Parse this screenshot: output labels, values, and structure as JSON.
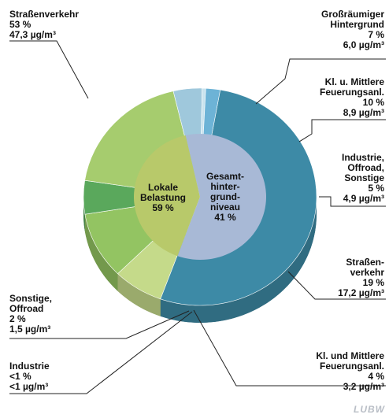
{
  "chart_data": {
    "type": "pie",
    "title": "",
    "outer_ring": [
      {
        "name": "Straßenverkehr",
        "percent_label": "53 %",
        "value_label": "47,3 µg/m³",
        "value": 53,
        "color": "#3d8aa6"
      },
      {
        "name": "Großräumiger Hintergrund",
        "percent_label": "7 %",
        "value_label": "6,0 µg/m³",
        "value": 7,
        "color": "#c5da8a"
      },
      {
        "name": "Kl. u. Mittlere Feuerungsanl.",
        "percent_label": "10 %",
        "value_label": "8,9 µg/m³",
        "value": 10,
        "color": "#93c462"
      },
      {
        "name": "Industrie, Offroad, Sonstige",
        "percent_label": "5 %",
        "value_label": "4,9 µg/m³",
        "value": 5,
        "color": "#5aa85c"
      },
      {
        "name": "Straßenverkehr",
        "percent_label": "19 %",
        "value_label": "17,2 µg/m³",
        "value": 19,
        "color": "#a6cc6e"
      },
      {
        "name": "Kl. und Mittlere Feuerungsanl.",
        "percent_label": "4 %",
        "value_label": "3,2 µg/m³",
        "value": 4,
        "color": "#9fc8dc"
      },
      {
        "name": "Industrie",
        "percent_label": "<1 %",
        "value_label": "<1 µg/m³",
        "value": 0.5,
        "color": "#c9e3ee"
      },
      {
        "name": "Sonstige, Offroad",
        "percent_label": "2 %",
        "value_label": "1,5 µg/m³",
        "value": 2,
        "color": "#6db3d6"
      }
    ],
    "inner_ring": [
      {
        "name": "Lokale Belastung",
        "percent_label": "59 %",
        "value": 59,
        "color": "#a8b9d6"
      },
      {
        "name": "Gesamt-hinter-grund-niveau",
        "percent_label": "41 %",
        "value": 41,
        "color": "#b8c96a"
      }
    ]
  },
  "labels": {
    "strassenverkehr_lokal": {
      "lines": [
        "Straßenverkehr",
        "53 %",
        "47,3 µg/m³"
      ]
    },
    "grossraeumig": {
      "lines": [
        "Großräumiger",
        "Hintergrund",
        "7 %",
        "6,0 µg/m³"
      ]
    },
    "kl_mittlere_1": {
      "lines": [
        "Kl. u. Mittlere",
        "Feuerungsanl.",
        "10 %",
        "8,9 µg/m³"
      ]
    },
    "industrie_offroad": {
      "lines": [
        "Industrie,",
        "Offroad,",
        "Sonstige",
        "5 %",
        "4,9 µg/m³"
      ]
    },
    "strassenverkehr_hg": {
      "lines": [
        "Straßen-",
        "verkehr",
        "19 %",
        "17,2 µg/m³"
      ]
    },
    "kl_mittlere_2": {
      "lines": [
        "Kl. und Mittlere",
        "Feuerungsanl.",
        "4 %",
        "3,2 µg/m³"
      ]
    },
    "industrie_lokal": {
      "lines": [
        "Industrie",
        "<1 %",
        "<1 µg/m³"
      ]
    },
    "sonstige_offroad": {
      "lines": [
        "Sonstige,",
        "Offroad",
        "2 %",
        "1,5 µg/m³"
      ]
    },
    "inner_lokal": {
      "lines": [
        "Lokale",
        "Belastung",
        "59 %"
      ]
    },
    "inner_hg": {
      "lines": [
        "Gesamt-",
        "hinter-",
        "grund-",
        "niveau",
        "41 %"
      ]
    }
  },
  "watermark": "LUBW"
}
